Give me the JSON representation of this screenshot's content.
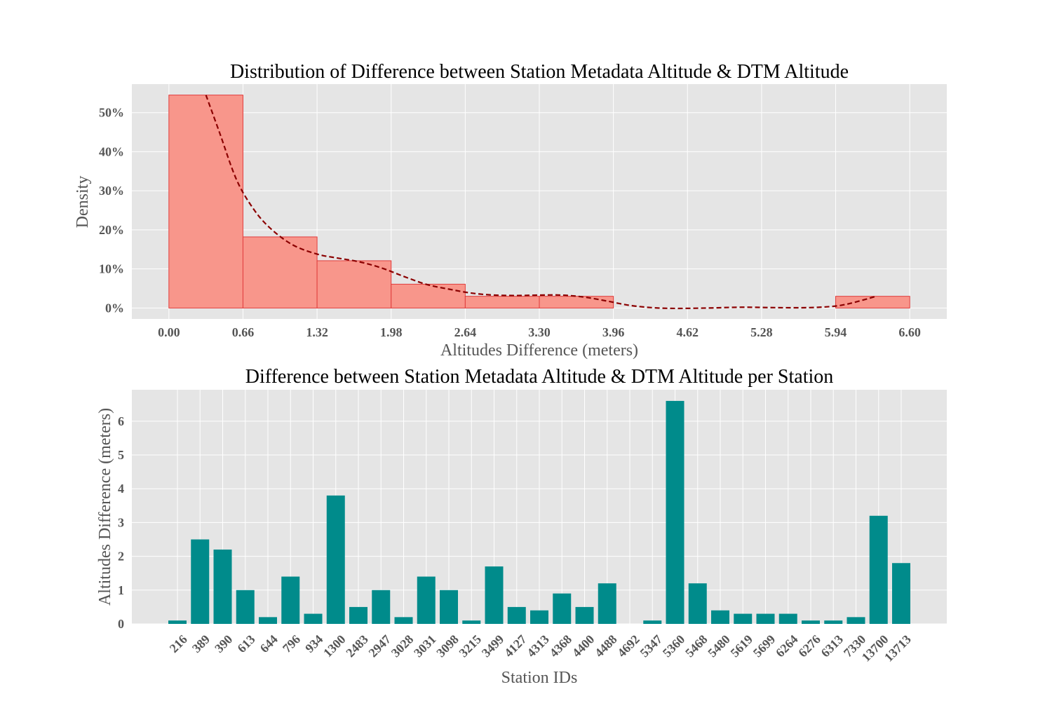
{
  "chart_data": [
    {
      "type": "bar",
      "subtype": "histogram",
      "title": "Distribution of Difference between Station Metadata Altitude & DTM Altitude",
      "xlabel": "Altitudes Difference (meters)",
      "ylabel": "Density",
      "bin_edges": [
        0.0,
        0.66,
        1.32,
        1.98,
        2.64,
        3.3,
        3.96,
        4.62,
        5.28,
        5.94,
        6.6
      ],
      "values": [
        54.5,
        18.2,
        12.1,
        6.1,
        3.0,
        3.0,
        0,
        0,
        0,
        3.0
      ],
      "xticks": [
        "0.00",
        "0.66",
        "1.32",
        "1.98",
        "2.64",
        "3.30",
        "3.96",
        "4.62",
        "5.28",
        "5.94",
        "6.60"
      ],
      "yticks": [
        "0%",
        "10%",
        "20%",
        "30%",
        "40%",
        "50%"
      ],
      "ytick_values": [
        0,
        10,
        20,
        30,
        40,
        50
      ],
      "xlim": [
        -0.33,
        6.93
      ],
      "ylim": [
        -2.8,
        57.3
      ],
      "kde": {
        "x": [
          0.33,
          0.45,
          0.6,
          0.75,
          0.9,
          1.1,
          1.32,
          1.5,
          1.7,
          1.9,
          2.1,
          2.3,
          2.5,
          2.7,
          2.9,
          3.1,
          3.3,
          3.5,
          3.7,
          3.9,
          4.1,
          4.3,
          4.5,
          4.8,
          5.1,
          5.4,
          5.7,
          5.94,
          6.1,
          6.3
        ],
        "y": [
          54.5,
          45.0,
          33.0,
          25.5,
          20.5,
          16.2,
          13.8,
          12.8,
          11.8,
          10.2,
          8.0,
          6.0,
          4.8,
          3.8,
          3.3,
          3.2,
          3.3,
          3.3,
          2.8,
          1.8,
          0.7,
          0.1,
          -0.1,
          0.0,
          0.2,
          0.1,
          0.1,
          0.5,
          1.4,
          3.0
        ],
        "color": "#8b0000",
        "style": "dashed"
      },
      "bar_color": "#f8968b",
      "edge_color": "#e03c3c",
      "grid": true
    },
    {
      "type": "bar",
      "title": "Difference between Station Metadata Altitude & DTM Altitude per Station",
      "xlabel": "Station IDs",
      "ylabel": "Altitudes Difference (meters)",
      "categories": [
        "216",
        "389",
        "390",
        "613",
        "644",
        "796",
        "934",
        "1300",
        "2483",
        "2947",
        "3028",
        "3031",
        "3098",
        "3215",
        "3499",
        "4127",
        "4313",
        "4368",
        "4400",
        "4488",
        "4692",
        "5347",
        "5360",
        "5468",
        "5480",
        "5619",
        "5699",
        "6264",
        "6276",
        "6313",
        "7330",
        "13700",
        "13713"
      ],
      "values": [
        0.1,
        2.5,
        2.2,
        1.0,
        0.2,
        1.4,
        0.3,
        3.8,
        0.5,
        1.0,
        0.2,
        1.4,
        1.0,
        0.1,
        1.7,
        0.5,
        0.4,
        0.9,
        0.5,
        1.2,
        0.0,
        0.1,
        6.6,
        1.2,
        0.4,
        0.3,
        0.3,
        0.3,
        0.1,
        0.1,
        0.2,
        3.2,
        1.8
      ],
      "yticks": [
        "0",
        "1",
        "2",
        "3",
        "4",
        "5",
        "6"
      ],
      "ytick_values": [
        0,
        1,
        2,
        3,
        4,
        5,
        6
      ],
      "ylim": [
        0,
        6.93
      ],
      "bar_color": "#008b8b",
      "grid": true
    }
  ]
}
